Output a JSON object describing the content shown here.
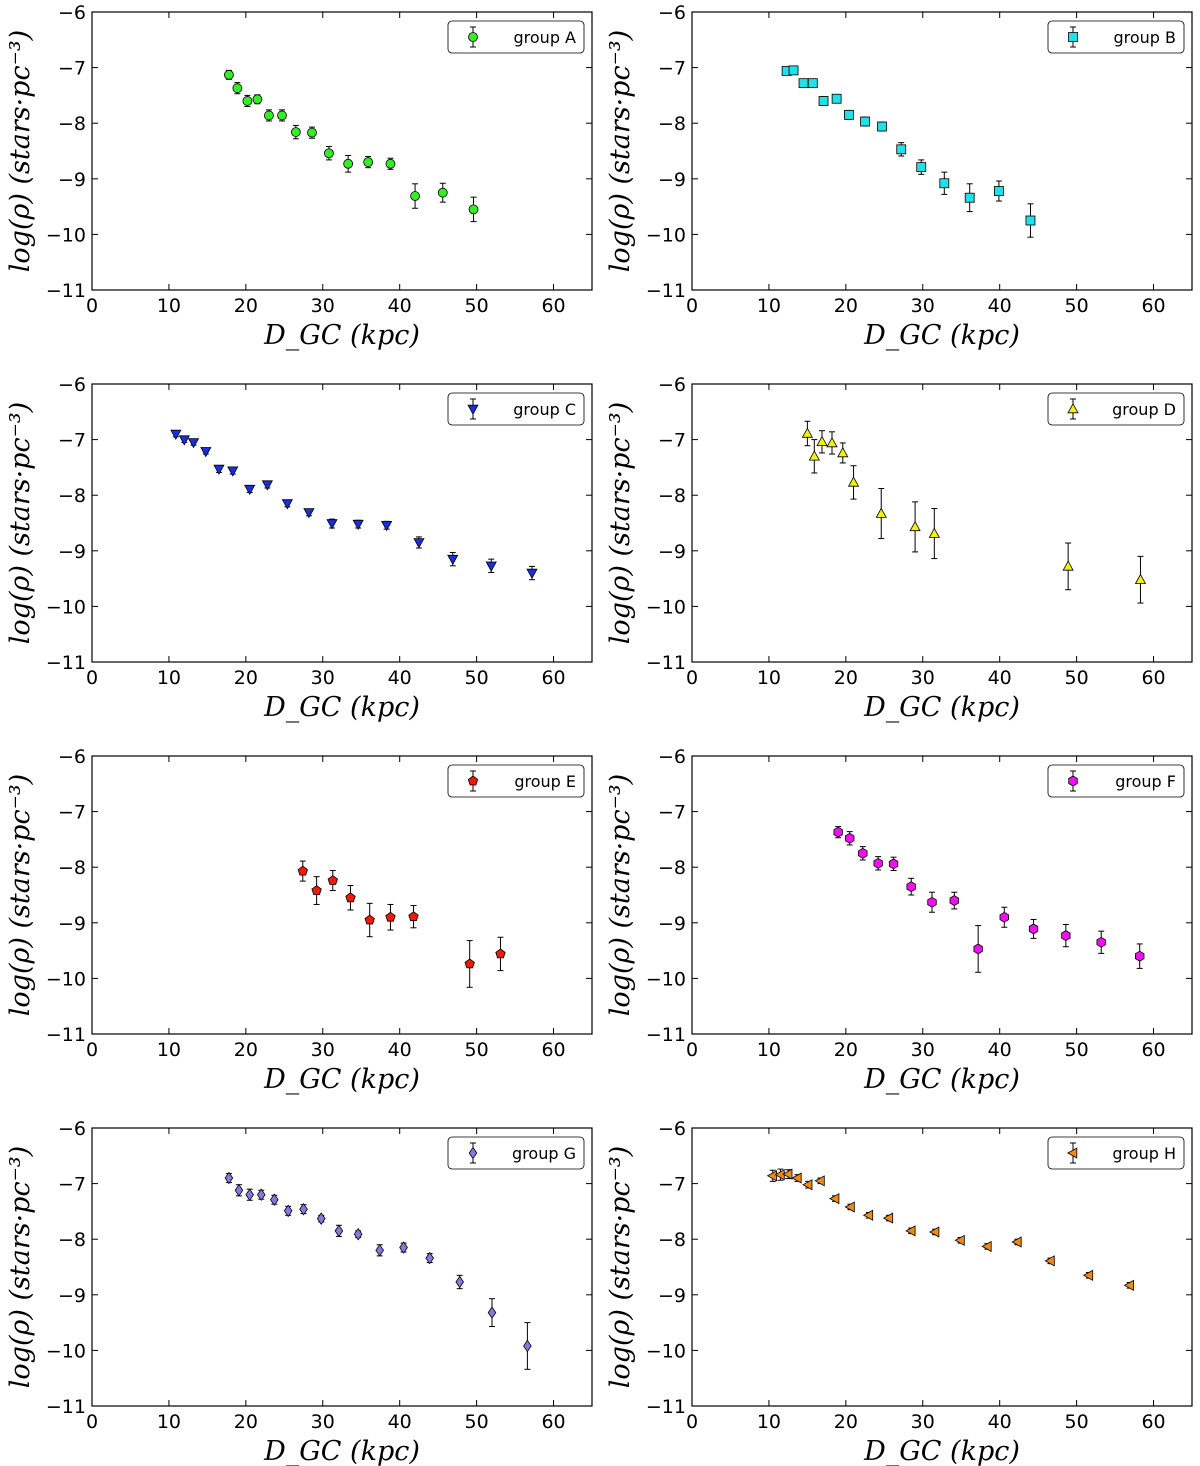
{
  "figure": {
    "xlabel": "D_GC (kpc)",
    "ylabel": "log(ρ) (stars·pc⁻³)"
  },
  "chart_data": [
    {
      "type": "scatter",
      "legend_label": "group A",
      "marker": "circle",
      "color": "#33ee22",
      "xlabel": "D_GC (kpc)",
      "ylabel": "log(ρ) (stars·pc⁻³)",
      "xlim": [
        0,
        65
      ],
      "ylim": [
        -11,
        -6
      ],
      "xticks": [
        "0",
        "10",
        "20",
        "30",
        "40",
        "50",
        "60"
      ],
      "yticks": [
        "−6",
        "−7",
        "−8",
        "−9",
        "−10",
        "−11"
      ],
      "legend_position": "top-right",
      "points": [
        {
          "x": 17.8,
          "y": -7.13,
          "err": 0.08
        },
        {
          "x": 18.9,
          "y": -7.37,
          "err": 0.1
        },
        {
          "x": 20.2,
          "y": -7.6,
          "err": 0.1
        },
        {
          "x": 21.5,
          "y": -7.57,
          "err": 0.08
        },
        {
          "x": 23.0,
          "y": -7.86,
          "err": 0.1
        },
        {
          "x": 24.7,
          "y": -7.86,
          "err": 0.1
        },
        {
          "x": 26.5,
          "y": -8.16,
          "err": 0.12
        },
        {
          "x": 28.6,
          "y": -8.17,
          "err": 0.1
        },
        {
          "x": 30.8,
          "y": -8.54,
          "err": 0.12
        },
        {
          "x": 33.3,
          "y": -8.73,
          "err": 0.15
        },
        {
          "x": 35.9,
          "y": -8.7,
          "err": 0.1
        },
        {
          "x": 38.8,
          "y": -8.73,
          "err": 0.1
        },
        {
          "x": 42.0,
          "y": -9.31,
          "err": 0.22
        },
        {
          "x": 45.6,
          "y": -9.25,
          "err": 0.17
        },
        {
          "x": 49.6,
          "y": -9.55,
          "err": 0.22
        }
      ]
    },
    {
      "type": "scatter",
      "legend_label": "group B",
      "marker": "square",
      "color": "#22e0e8",
      "xlabel": "D_GC (kpc)",
      "ylabel": "log(ρ) (stars·pc⁻³)",
      "xlim": [
        0,
        65
      ],
      "ylim": [
        -11,
        -6
      ],
      "xticks": [
        "0",
        "10",
        "20",
        "30",
        "40",
        "50",
        "60"
      ],
      "yticks": [
        "−6",
        "−7",
        "−8",
        "−9",
        "−10",
        "−11"
      ],
      "legend_position": "top-right",
      "points": [
        {
          "x": 12.3,
          "y": -7.06,
          "err": 0.07
        },
        {
          "x": 13.2,
          "y": -7.05,
          "err": 0.07
        },
        {
          "x": 14.5,
          "y": -7.28,
          "err": 0.07
        },
        {
          "x": 15.7,
          "y": -7.28,
          "err": 0.07
        },
        {
          "x": 17.1,
          "y": -7.6,
          "err": 0.08
        },
        {
          "x": 18.8,
          "y": -7.56,
          "err": 0.07
        },
        {
          "x": 20.4,
          "y": -7.85,
          "err": 0.08
        },
        {
          "x": 22.5,
          "y": -7.97,
          "err": 0.08
        },
        {
          "x": 24.7,
          "y": -8.06,
          "err": 0.08
        },
        {
          "x": 27.2,
          "y": -8.47,
          "err": 0.12
        },
        {
          "x": 29.8,
          "y": -8.79,
          "err": 0.13
        },
        {
          "x": 32.8,
          "y": -9.08,
          "err": 0.2
        },
        {
          "x": 36.1,
          "y": -9.34,
          "err": 0.25
        },
        {
          "x": 39.9,
          "y": -9.22,
          "err": 0.18
        },
        {
          "x": 44.0,
          "y": -9.75,
          "err": 0.3
        }
      ]
    },
    {
      "type": "scatter",
      "legend_label": "group C",
      "marker": "triangle-down",
      "color": "#1a2ee0",
      "xlabel": "D_GC (kpc)",
      "ylabel": "log(ρ) (stars·pc⁻³)",
      "xlim": [
        0,
        65
      ],
      "ylim": [
        -11,
        -6
      ],
      "xticks": [
        "0",
        "10",
        "20",
        "30",
        "40",
        "50",
        "60"
      ],
      "yticks": [
        "−6",
        "−7",
        "−8",
        "−9",
        "−10",
        "−11"
      ],
      "legend_position": "top-right",
      "points": [
        {
          "x": 10.9,
          "y": -6.9,
          "err": 0.05
        },
        {
          "x": 12.0,
          "y": -7.0,
          "err": 0.05
        },
        {
          "x": 13.2,
          "y": -7.05,
          "err": 0.05
        },
        {
          "x": 14.8,
          "y": -7.21,
          "err": 0.05
        },
        {
          "x": 16.5,
          "y": -7.53,
          "err": 0.06
        },
        {
          "x": 18.3,
          "y": -7.56,
          "err": 0.06
        },
        {
          "x": 20.5,
          "y": -7.89,
          "err": 0.06
        },
        {
          "x": 22.8,
          "y": -7.81,
          "err": 0.06
        },
        {
          "x": 25.4,
          "y": -8.15,
          "err": 0.06
        },
        {
          "x": 28.2,
          "y": -8.31,
          "err": 0.06
        },
        {
          "x": 31.2,
          "y": -8.51,
          "err": 0.08
        },
        {
          "x": 34.6,
          "y": -8.52,
          "err": 0.07
        },
        {
          "x": 38.3,
          "y": -8.54,
          "err": 0.07
        },
        {
          "x": 42.5,
          "y": -8.85,
          "err": 0.1
        },
        {
          "x": 46.9,
          "y": -9.15,
          "err": 0.12
        },
        {
          "x": 51.9,
          "y": -9.27,
          "err": 0.12
        },
        {
          "x": 57.2,
          "y": -9.4,
          "err": 0.12
        }
      ]
    },
    {
      "type": "scatter",
      "legend_label": "group D",
      "marker": "triangle-up",
      "color": "#f2f20a",
      "xlabel": "D_GC (kpc)",
      "ylabel": "log(ρ) (stars·pc⁻³)",
      "xlim": [
        0,
        65
      ],
      "ylim": [
        -11,
        -6
      ],
      "xticks": [
        "0",
        "10",
        "20",
        "30",
        "40",
        "50",
        "60"
      ],
      "yticks": [
        "−6",
        "−7",
        "−8",
        "−9",
        "−10",
        "−11"
      ],
      "legend_position": "top-right",
      "points": [
        {
          "x": 15.0,
          "y": -6.89,
          "err": 0.22
        },
        {
          "x": 15.9,
          "y": -7.3,
          "err": 0.3
        },
        {
          "x": 16.9,
          "y": -7.04,
          "err": 0.2
        },
        {
          "x": 18.2,
          "y": -7.06,
          "err": 0.2
        },
        {
          "x": 19.6,
          "y": -7.24,
          "err": 0.18
        },
        {
          "x": 21.0,
          "y": -7.77,
          "err": 0.3
        },
        {
          "x": 24.6,
          "y": -8.33,
          "err": 0.45
        },
        {
          "x": 29.0,
          "y": -8.57,
          "err": 0.45
        },
        {
          "x": 31.5,
          "y": -8.69,
          "err": 0.45
        },
        {
          "x": 48.9,
          "y": -9.28,
          "err": 0.42
        },
        {
          "x": 58.3,
          "y": -9.52,
          "err": 0.42
        }
      ]
    },
    {
      "type": "scatter",
      "legend_label": "group E",
      "marker": "pentagon",
      "color": "#ee1a0a",
      "xlabel": "D_GC (kpc)",
      "ylabel": "log(ρ) (stars·pc⁻³)",
      "xlim": [
        0,
        65
      ],
      "ylim": [
        -11,
        -6
      ],
      "xticks": [
        "0",
        "10",
        "20",
        "30",
        "40",
        "50",
        "60"
      ],
      "yticks": [
        "−6",
        "−7",
        "−8",
        "−9",
        "−10",
        "−11"
      ],
      "legend_position": "top-right",
      "points": [
        {
          "x": 27.4,
          "y": -8.07,
          "err": 0.18
        },
        {
          "x": 29.2,
          "y": -8.42,
          "err": 0.25
        },
        {
          "x": 31.3,
          "y": -8.24,
          "err": 0.18
        },
        {
          "x": 33.6,
          "y": -8.55,
          "err": 0.22
        },
        {
          "x": 36.1,
          "y": -8.95,
          "err": 0.3
        },
        {
          "x": 38.8,
          "y": -8.9,
          "err": 0.23
        },
        {
          "x": 41.8,
          "y": -8.89,
          "err": 0.2
        },
        {
          "x": 49.1,
          "y": -9.74,
          "err": 0.42
        },
        {
          "x": 53.1,
          "y": -9.56,
          "err": 0.3
        }
      ]
    },
    {
      "type": "scatter",
      "legend_label": "group F",
      "marker": "hexagon",
      "color": "#ee10ee",
      "xlabel": "D_GC (kpc)",
      "ylabel": "log(ρ) (stars·pc⁻³)",
      "xlim": [
        0,
        65
      ],
      "ylim": [
        -11,
        -6
      ],
      "xticks": [
        "0",
        "10",
        "20",
        "30",
        "40",
        "50",
        "60"
      ],
      "yticks": [
        "−6",
        "−7",
        "−8",
        "−9",
        "−10",
        "−11"
      ],
      "legend_position": "top-right",
      "points": [
        {
          "x": 19.0,
          "y": -7.37,
          "err": 0.1
        },
        {
          "x": 20.5,
          "y": -7.48,
          "err": 0.12
        },
        {
          "x": 22.2,
          "y": -7.75,
          "err": 0.12
        },
        {
          "x": 24.2,
          "y": -7.93,
          "err": 0.12
        },
        {
          "x": 26.2,
          "y": -7.94,
          "err": 0.12
        },
        {
          "x": 28.5,
          "y": -8.35,
          "err": 0.15
        },
        {
          "x": 31.2,
          "y": -8.63,
          "err": 0.18
        },
        {
          "x": 34.1,
          "y": -8.6,
          "err": 0.15
        },
        {
          "x": 37.2,
          "y": -9.47,
          "err": 0.42
        },
        {
          "x": 40.6,
          "y": -8.9,
          "err": 0.18
        },
        {
          "x": 44.4,
          "y": -9.11,
          "err": 0.17
        },
        {
          "x": 48.6,
          "y": -9.23,
          "err": 0.2
        },
        {
          "x": 53.2,
          "y": -9.35,
          "err": 0.2
        },
        {
          "x": 58.2,
          "y": -9.6,
          "err": 0.22
        }
      ]
    },
    {
      "type": "scatter",
      "legend_label": "group G",
      "marker": "diamond",
      "color": "#8877dd",
      "xlabel": "D_GC (kpc)",
      "ylabel": "log(ρ) (stars·pc⁻³)",
      "xlim": [
        0,
        65
      ],
      "ylim": [
        -11,
        -6
      ],
      "xticks": [
        "0",
        "10",
        "20",
        "30",
        "40",
        "50",
        "60"
      ],
      "yticks": [
        "−6",
        "−7",
        "−8",
        "−9",
        "−10",
        "−11"
      ],
      "legend_position": "top-right",
      "points": [
        {
          "x": 17.8,
          "y": -6.9,
          "err": 0.08
        },
        {
          "x": 19.1,
          "y": -7.12,
          "err": 0.1
        },
        {
          "x": 20.5,
          "y": -7.2,
          "err": 0.1
        },
        {
          "x": 22.0,
          "y": -7.2,
          "err": 0.08
        },
        {
          "x": 23.7,
          "y": -7.29,
          "err": 0.08
        },
        {
          "x": 25.5,
          "y": -7.49,
          "err": 0.08
        },
        {
          "x": 27.5,
          "y": -7.46,
          "err": 0.08
        },
        {
          "x": 29.8,
          "y": -7.63,
          "err": 0.06
        },
        {
          "x": 32.1,
          "y": -7.85,
          "err": 0.1
        },
        {
          "x": 34.6,
          "y": -7.91,
          "err": 0.06
        },
        {
          "x": 37.4,
          "y": -8.2,
          "err": 0.1
        },
        {
          "x": 40.5,
          "y": -8.15,
          "err": 0.08
        },
        {
          "x": 43.9,
          "y": -8.34,
          "err": 0.08
        },
        {
          "x": 47.8,
          "y": -8.77,
          "err": 0.12
        },
        {
          "x": 52.0,
          "y": -9.32,
          "err": 0.25
        },
        {
          "x": 56.6,
          "y": -9.92,
          "err": 0.42
        }
      ]
    },
    {
      "type": "scatter",
      "legend_label": "group H",
      "marker": "triangle-left",
      "color": "#f08a14",
      "xlabel": "D_GC (kpc)",
      "ylabel": "log(ρ) (stars·pc⁻³)",
      "xlim": [
        0,
        65
      ],
      "ylim": [
        -11,
        -6
      ],
      "xticks": [
        "0",
        "10",
        "20",
        "30",
        "40",
        "50",
        "60"
      ],
      "yticks": [
        "−6",
        "−7",
        "−8",
        "−9",
        "−10",
        "−11"
      ],
      "legend_position": "top-right",
      "points": [
        {
          "x": 10.5,
          "y": -6.86,
          "err": 0.1
        },
        {
          "x": 11.5,
          "y": -6.84,
          "err": 0.1
        },
        {
          "x": 12.5,
          "y": -6.83,
          "err": 0.08
        },
        {
          "x": 13.7,
          "y": -6.9,
          "err": 0.06
        },
        {
          "x": 15.1,
          "y": -7.02,
          "err": 0.06
        },
        {
          "x": 16.7,
          "y": -6.95,
          "err": 0.05
        },
        {
          "x": 18.6,
          "y": -7.27,
          "err": 0.05
        },
        {
          "x": 20.6,
          "y": -7.42,
          "err": 0.05
        },
        {
          "x": 23.0,
          "y": -7.57,
          "err": 0.05
        },
        {
          "x": 25.6,
          "y": -7.62,
          "err": 0.05
        },
        {
          "x": 28.5,
          "y": -7.85,
          "err": 0.05
        },
        {
          "x": 31.6,
          "y": -7.87,
          "err": 0.05
        },
        {
          "x": 34.9,
          "y": -8.02,
          "err": 0.05
        },
        {
          "x": 38.4,
          "y": -8.13,
          "err": 0.05
        },
        {
          "x": 42.3,
          "y": -8.05,
          "err": 0.05
        },
        {
          "x": 46.6,
          "y": -8.39,
          "err": 0.05
        },
        {
          "x": 51.6,
          "y": -8.65,
          "err": 0.05
        },
        {
          "x": 56.9,
          "y": -8.83,
          "err": 0.05
        }
      ]
    }
  ]
}
